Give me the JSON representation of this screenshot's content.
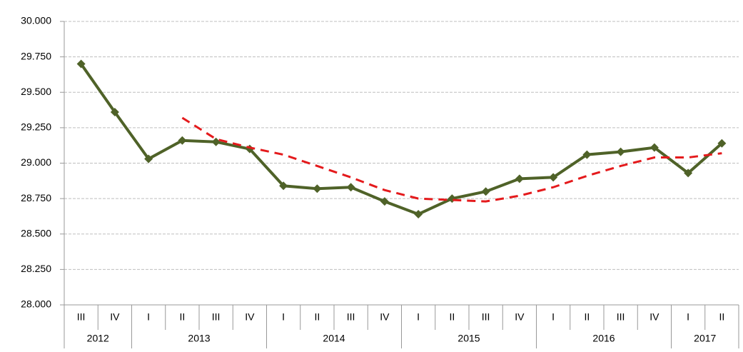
{
  "chart_data": {
    "type": "line",
    "categories": [
      "III",
      "IV",
      "I",
      "II",
      "III",
      "IV",
      "I",
      "II",
      "III",
      "IV",
      "I",
      "II",
      "III",
      "IV",
      "I",
      "II",
      "III",
      "IV",
      "I",
      "II"
    ],
    "groups": [
      {
        "label": "2012",
        "count": 2
      },
      {
        "label": "2013",
        "count": 4
      },
      {
        "label": "2014",
        "count": 4
      },
      {
        "label": "2015",
        "count": 4
      },
      {
        "label": "2016",
        "count": 4
      },
      {
        "label": "2017",
        "count": 2
      }
    ],
    "series": [
      {
        "color": "#4f6228",
        "marker": "diamond",
        "dashed": false,
        "values": [
          29.7,
          29.36,
          29.03,
          29.16,
          29.15,
          29.1,
          28.84,
          28.82,
          28.83,
          28.73,
          28.64,
          28.75,
          28.8,
          28.89,
          28.9,
          29.06,
          29.08,
          29.11,
          28.93,
          29.14
        ]
      },
      {
        "color": "#e41a1c",
        "marker": "none",
        "dashed": true,
        "values": [
          null,
          null,
          null,
          29.32,
          29.17,
          29.11,
          29.06,
          28.98,
          28.9,
          28.81,
          28.75,
          28.74,
          28.73,
          28.77,
          28.83,
          28.91,
          28.98,
          29.04,
          29.04,
          29.07
        ]
      }
    ],
    "ylim": [
      28,
      30
    ],
    "yticks": [
      {
        "value": 28,
        "label": "28.000"
      },
      {
        "value": 28.25,
        "label": "28.250"
      },
      {
        "value": 28.5,
        "label": "28.500"
      },
      {
        "value": 28.75,
        "label": "28.750"
      },
      {
        "value": 29,
        "label": "29.000"
      },
      {
        "value": 29.25,
        "label": "29.250"
      },
      {
        "value": 29.5,
        "label": "29.500"
      },
      {
        "value": 29.75,
        "label": "29.750"
      },
      {
        "value": 30,
        "label": "30.000"
      }
    ],
    "grid": true
  }
}
